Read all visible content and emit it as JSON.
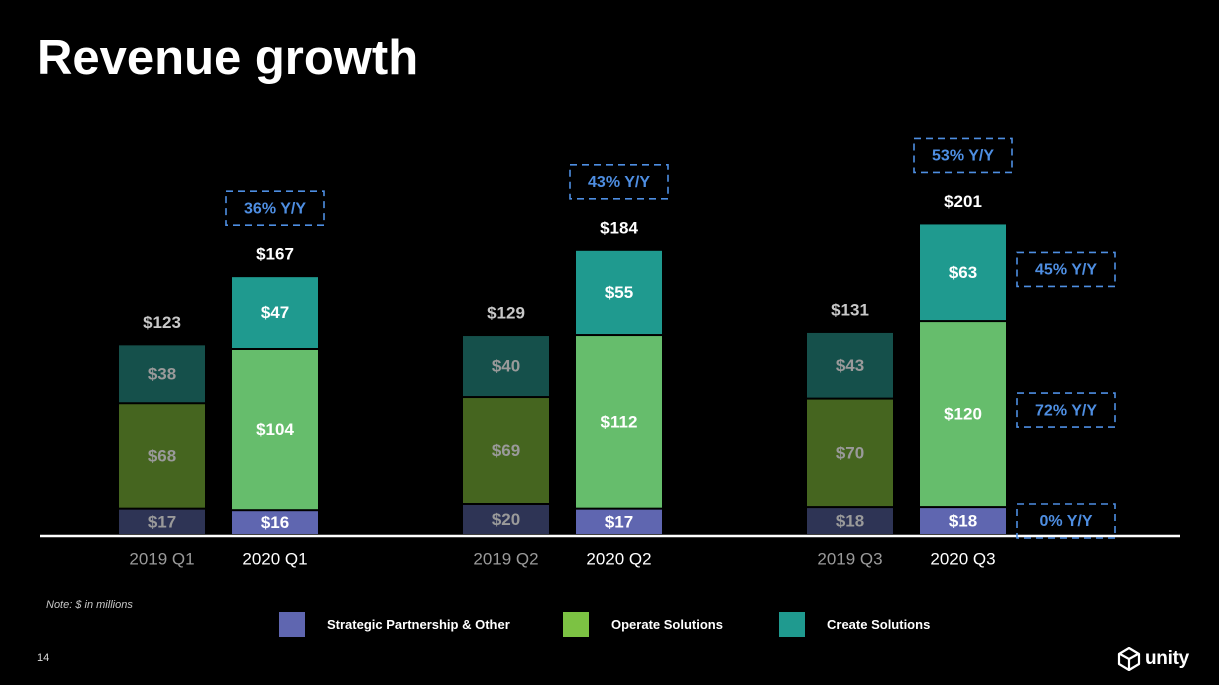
{
  "slide": {
    "title": "Revenue growth",
    "note": "Note: $ in millions",
    "page_number": "14",
    "logo_text": "unity",
    "logo_icon": "unity-cube-icon"
  },
  "legend": [
    {
      "name": "Strategic Partnership & Other",
      "color": "#5f66b0"
    },
    {
      "name": "Operate Solutions",
      "color": "#7cc243"
    },
    {
      "name": "Create Solutions",
      "color": "#1f9a8f"
    }
  ],
  "chart_data": {
    "type": "bar",
    "stacked": true,
    "unit": "$ in millions",
    "categories": [
      "2019 Q1",
      "2020 Q1",
      "2019 Q2",
      "2020 Q2",
      "2019 Q3",
      "2020 Q3"
    ],
    "series": [
      {
        "name": "Strategic Partnership & Other",
        "values": [
          17,
          16,
          20,
          17,
          18,
          18
        ],
        "labels": [
          "$17",
          "$16",
          "$20",
          "$17",
          "$18",
          "$18"
        ]
      },
      {
        "name": "Operate Solutions",
        "values": [
          68,
          104,
          69,
          112,
          70,
          120
        ],
        "labels": [
          "$68",
          "$104",
          "$69",
          "$112",
          "$70",
          "$120"
        ]
      },
      {
        "name": "Create Solutions",
        "values": [
          38,
          47,
          40,
          55,
          43,
          63
        ],
        "labels": [
          "$38",
          "$47",
          "$40",
          "$55",
          "$43",
          "$63"
        ]
      }
    ],
    "totals": [
      123,
      167,
      129,
      184,
      131,
      201
    ],
    "total_labels": [
      "$123",
      "$167",
      "$129",
      "$184",
      "$131",
      "$201"
    ],
    "highlighted": [
      false,
      true,
      false,
      true,
      false,
      true
    ],
    "growth_callouts": [
      {
        "text": "36% Y/Y",
        "category": "2020 Q1",
        "target": "total"
      },
      {
        "text": "43% Y/Y",
        "category": "2020 Q2",
        "target": "total"
      },
      {
        "text": "53% Y/Y",
        "category": "2020 Q3",
        "target": "total"
      },
      {
        "text": "45% Y/Y",
        "category": "2020 Q3",
        "target": "Create Solutions"
      },
      {
        "text": "72% Y/Y",
        "category": "2020 Q3",
        "target": "Operate Solutions"
      },
      {
        "text": "0% Y/Y",
        "category": "2020 Q3",
        "target": "Strategic Partnership & Other"
      }
    ],
    "colors": {
      "current": [
        "#5f66b0",
        "#66bd6c",
        "#1f9a8f"
      ],
      "prior": [
        "#2e3455",
        "#45651f",
        "#15504b"
      ],
      "prior_label_text": "#9a9a9a",
      "callout": "#4e8ee2",
      "baseline": "#ffffff"
    }
  }
}
